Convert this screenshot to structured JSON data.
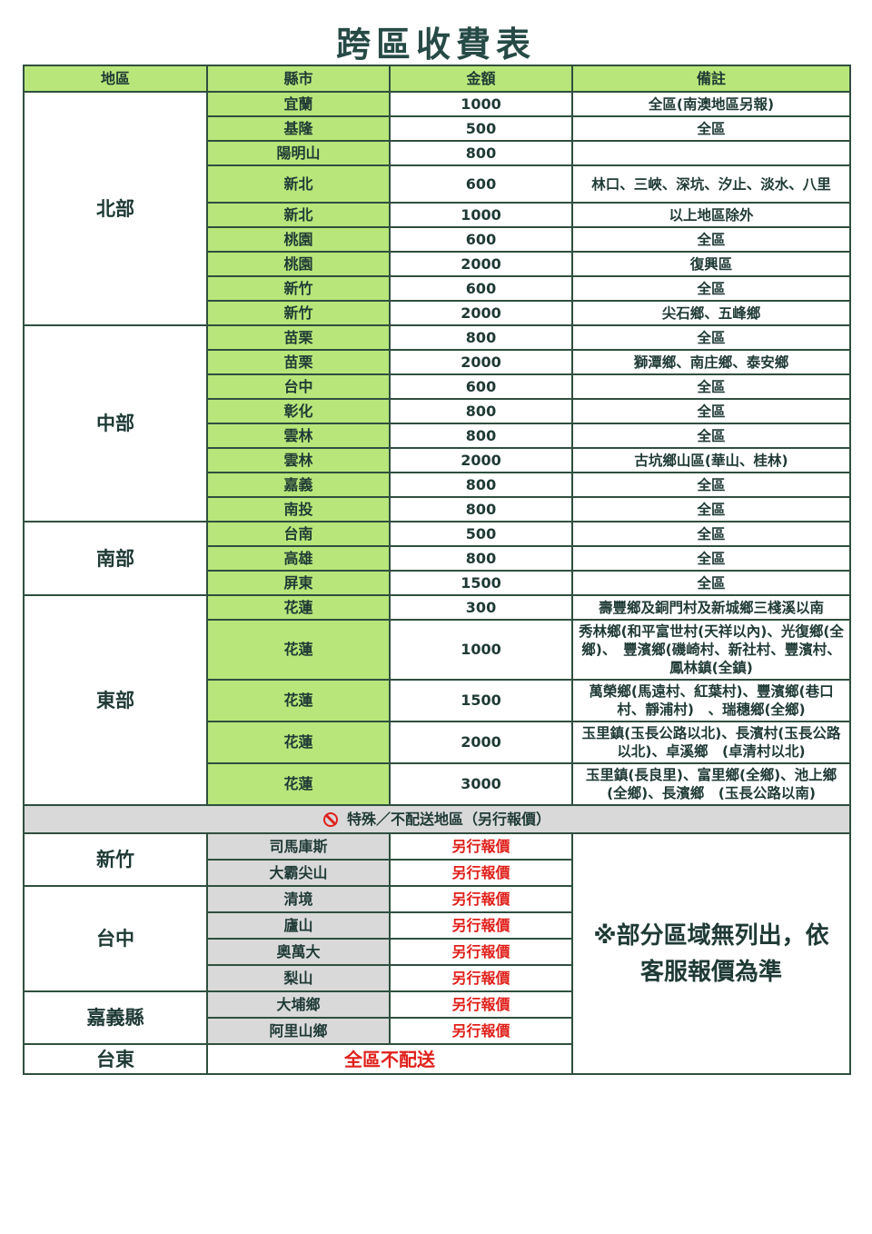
{
  "title": "跨區收費表",
  "headers": [
    "地區",
    "縣市",
    "金額",
    "備註"
  ],
  "groups": [
    {
      "region": "北部",
      "rows": [
        {
          "city": "宜蘭",
          "fee": "1000",
          "note": "全區(南澳地區另報)"
        },
        {
          "city": "基隆",
          "fee": "500",
          "note": "全區"
        },
        {
          "city": "陽明山",
          "fee": "800",
          "note": ""
        },
        {
          "city": "新北",
          "fee": "600",
          "note": "林口、三峽、深坑、汐止、淡水、八里"
        },
        {
          "city": "新北",
          "fee": "1000",
          "note": "以上地區除外"
        },
        {
          "city": "桃園",
          "fee": "600",
          "note": "全區"
        },
        {
          "city": "桃園",
          "fee": "2000",
          "note": "復興區"
        },
        {
          "city": "新竹",
          "fee": "600",
          "note": "全區"
        },
        {
          "city": "新竹",
          "fee": "2000",
          "note": "尖石鄉、五峰鄉"
        }
      ]
    },
    {
      "region": "中部",
      "rows": [
        {
          "city": "苗栗",
          "fee": "800",
          "note": "全區"
        },
        {
          "city": "苗栗",
          "fee": "2000",
          "note": "獅潭鄉、南庄鄉、泰安鄉"
        },
        {
          "city": "台中",
          "fee": "600",
          "note": "全區"
        },
        {
          "city": "彰化",
          "fee": "800",
          "note": "全區"
        },
        {
          "city": "雲林",
          "fee": "800",
          "note": "全區"
        },
        {
          "city": "雲林",
          "fee": "2000",
          "note": "古坑鄉山區(華山、桂林)"
        },
        {
          "city": "嘉義",
          "fee": "800",
          "note": "全區"
        },
        {
          "city": "南投",
          "fee": "800",
          "note": "全區"
        }
      ]
    },
    {
      "region": "南部",
      "rows": [
        {
          "city": "台南",
          "fee": "500",
          "note": "全區"
        },
        {
          "city": "高雄",
          "fee": "800",
          "note": "全區"
        },
        {
          "city": "屏東",
          "fee": "1500",
          "note": "全區"
        }
      ]
    },
    {
      "region": "東部",
      "rows": [
        {
          "city": "花蓮",
          "fee": "300",
          "note": "壽豐鄉及銅門村及新城鄉三棧溪以南"
        },
        {
          "city": "花蓮",
          "fee": "1000",
          "note": "秀林鄉(和平富世村(天祥以內)、光復鄉(全鄉)、　豐濱鄉(磯崎村、新社村、豐濱村、鳳林鎮(全鎮)"
        },
        {
          "city": "花蓮",
          "fee": "1500",
          "note": "萬榮鄉(馬遠村、紅葉村)、豐濱鄉(巷口村、靜浦村)　、瑞穗鄉(全鄉)"
        },
        {
          "city": "花蓮",
          "fee": "2000",
          "note": "玉里鎮(玉長公路以北)、長濱村(玉長公路以北)、卓溪鄉　(卓清村以北)"
        },
        {
          "city": "花蓮",
          "fee": "3000",
          "note": "玉里鎮(長良里)、富里鄉(全鄉)、池上鄉(全鄉)、長濱鄉　(玉長公路以南)"
        }
      ]
    }
  ],
  "special": {
    "title": "特殊／不配送地區（另行報價）",
    "icon": "no-entry-icon",
    "groups": [
      {
        "region": "新竹",
        "rows": [
          {
            "area": "司馬庫斯",
            "fee": "另行報價"
          },
          {
            "area": "大霸尖山",
            "fee": "另行報價"
          }
        ]
      },
      {
        "region": "台中",
        "rows": [
          {
            "area": "清境",
            "fee": "另行報價"
          },
          {
            "area": "廬山",
            "fee": "另行報價"
          },
          {
            "area": "奧萬大",
            "fee": "另行報價"
          },
          {
            "area": "梨山",
            "fee": "另行報價"
          }
        ]
      },
      {
        "region": "嘉義縣",
        "rows": [
          {
            "area": "大埔鄉",
            "fee": "另行報價"
          },
          {
            "area": "阿里山鄉",
            "fee": "另行報價"
          }
        ]
      }
    ],
    "taitung": {
      "region": "台東",
      "text": "全區不配送"
    },
    "footnote": "※部分區域無列出，依客服報價為準"
  },
  "colors": {
    "header_green": "#b8e67a",
    "border": "#2f4f3f",
    "red": "#e0201b",
    "gray": "#d9d9d9"
  }
}
